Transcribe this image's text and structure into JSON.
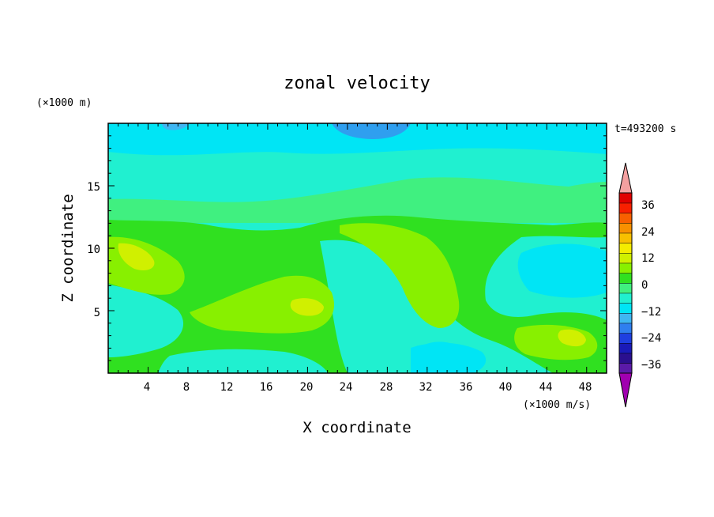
{
  "chart_data": {
    "type": "heatmap",
    "title": "zonal velocity",
    "xlabel": "X coordinate",
    "ylabel": "Z coordinate",
    "x_unit": "(×1000 m/s)",
    "y_unit": "(×1000 m)",
    "time_label": "t=493200 s",
    "xlim": [
      0,
      50
    ],
    "ylim": [
      0,
      20
    ],
    "x_ticks": [
      "4",
      "8",
      "12",
      "16",
      "20",
      "24",
      "28",
      "32",
      "36",
      "40",
      "44",
      "48"
    ],
    "y_ticks": [
      "5",
      "10",
      "15"
    ],
    "colorbar": {
      "ticks": [
        "36",
        "24",
        "12",
        "0",
        "−12",
        "−24",
        "−36"
      ],
      "colors": [
        "#5a1aa8",
        "#2a0f8f",
        "#1a1ab8",
        "#1f3fe0",
        "#2f7fef",
        "#3fb6f2",
        "#00e5f5",
        "#20f0d0",
        "#40f080",
        "#30e020",
        "#88f000",
        "#d0f000",
        "#f4ec00",
        "#f8c000",
        "#f89000",
        "#f86000",
        "#f82000",
        "#e00000"
      ],
      "under_color": "#a000b0",
      "over_color": "#f4a0a0",
      "vmin": -42,
      "vmax": 42
    }
  }
}
